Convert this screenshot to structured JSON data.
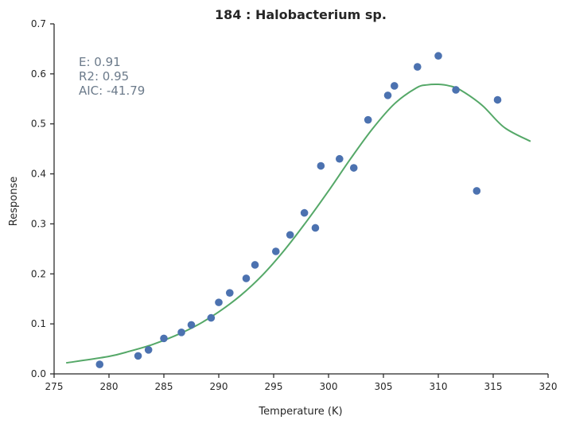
{
  "chart_data": {
    "type": "scatter",
    "title": "184 : Halobacterium sp.",
    "xlabel": "Temperature (K)",
    "ylabel": "Response",
    "xlim": [
      275,
      320
    ],
    "ylim": [
      0,
      0.7
    ],
    "xticks": [
      275,
      280,
      285,
      290,
      295,
      300,
      305,
      310,
      315,
      320
    ],
    "yticks": [
      0.0,
      0.1,
      0.2,
      0.3,
      0.4,
      0.5,
      0.6,
      0.7
    ],
    "xtick_labels": [
      "275",
      "280",
      "285",
      "290",
      "295",
      "300",
      "305",
      "310",
      "315",
      "320"
    ],
    "ytick_labels": [
      "0.0",
      "0.1",
      "0.2",
      "0.3",
      "0.4",
      "0.5",
      "0.6",
      "0.7"
    ],
    "grid": false,
    "stats": {
      "E_label": "E:  0.91",
      "R2_label": "R2:  0.95",
      "AIC_label": "AIC: -41.79"
    },
    "series": [
      {
        "kind": "points",
        "color": "#4c72b0",
        "x": [
          279.15,
          282.65,
          283.6,
          285.0,
          286.6,
          287.5,
          289.3,
          290.0,
          291.0,
          292.5,
          293.3,
          295.2,
          296.5,
          297.8,
          298.8,
          299.3,
          301.0,
          302.3,
          303.6,
          305.4,
          306.0,
          308.1,
          310.0,
          311.6,
          313.5,
          315.4
        ],
        "y": [
          0.019,
          0.036,
          0.048,
          0.071,
          0.083,
          0.098,
          0.112,
          0.143,
          0.162,
          0.191,
          0.218,
          0.245,
          0.278,
          0.322,
          0.292,
          0.416,
          0.43,
          0.412,
          0.508,
          0.557,
          0.576,
          0.614,
          0.636,
          0.568,
          0.366,
          0.548
        ]
      },
      {
        "kind": "fit",
        "color": "#55a868",
        "x": [
          276.1,
          280,
          282,
          284,
          286,
          288,
          290,
          292,
          294,
          296,
          298,
          300,
          302,
          304,
          306,
          308,
          309,
          310,
          311,
          312,
          314,
          316,
          318.4
        ],
        "y": [
          0.022,
          0.035,
          0.046,
          0.059,
          0.076,
          0.097,
          0.124,
          0.157,
          0.198,
          0.248,
          0.305,
          0.366,
          0.43,
          0.49,
          0.54,
          0.572,
          0.578,
          0.579,
          0.576,
          0.568,
          0.537,
          0.493,
          0.465
        ]
      }
    ]
  }
}
